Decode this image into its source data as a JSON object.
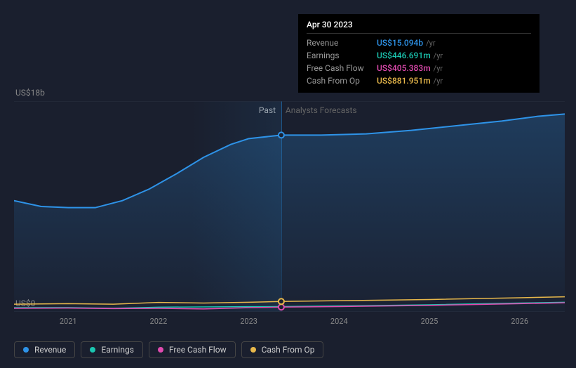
{
  "tooltip": {
    "date": "Apr 30 2023",
    "rows": [
      {
        "label": "Revenue",
        "value": "US$15.094b",
        "unit": "/yr",
        "color": "#2e93e8"
      },
      {
        "label": "Earnings",
        "value": "US$446.691m",
        "unit": "/yr",
        "color": "#1bc7b1"
      },
      {
        "label": "Free Cash Flow",
        "value": "US$405.383m",
        "unit": "/yr",
        "color": "#e14bb0"
      },
      {
        "label": "Cash From Op",
        "value": "US$881.951m",
        "unit": "/yr",
        "color": "#e8b84b"
      }
    ]
  },
  "axes": {
    "yMaxLabel": "US$18b",
    "yMinLabel": "US$0",
    "yMax": 18,
    "yMin": 0,
    "xLabels": [
      "2021",
      "2022",
      "2023",
      "2024",
      "2025",
      "2026"
    ],
    "xMin": 2020.4,
    "xMax": 2026.5
  },
  "sections": {
    "pastLabel": "Past",
    "forecastLabel": "Analysts Forecasts",
    "dividerX": 2023.36
  },
  "series": [
    {
      "name": "Revenue",
      "color": "#2e93e8",
      "fill": true,
      "lineWidth": 2,
      "data": [
        {
          "x": 2020.4,
          "y": 9.5
        },
        {
          "x": 2020.7,
          "y": 9.0
        },
        {
          "x": 2021.0,
          "y": 8.9
        },
        {
          "x": 2021.3,
          "y": 8.9
        },
        {
          "x": 2021.6,
          "y": 9.5
        },
        {
          "x": 2021.9,
          "y": 10.5
        },
        {
          "x": 2022.2,
          "y": 11.8
        },
        {
          "x": 2022.5,
          "y": 13.2
        },
        {
          "x": 2022.8,
          "y": 14.3
        },
        {
          "x": 2023.0,
          "y": 14.8
        },
        {
          "x": 2023.36,
          "y": 15.094
        },
        {
          "x": 2023.8,
          "y": 15.1
        },
        {
          "x": 2024.3,
          "y": 15.2
        },
        {
          "x": 2024.8,
          "y": 15.5
        },
        {
          "x": 2025.3,
          "y": 15.9
        },
        {
          "x": 2025.8,
          "y": 16.3
        },
        {
          "x": 2026.2,
          "y": 16.7
        },
        {
          "x": 2026.5,
          "y": 16.9
        }
      ],
      "marker": {
        "x": 2023.36,
        "y": 15.094
      }
    },
    {
      "name": "Earnings",
      "color": "#1bc7b1",
      "fill": false,
      "lineWidth": 1.5,
      "data": [
        {
          "x": 2020.4,
          "y": 0.35
        },
        {
          "x": 2021.0,
          "y": 0.36
        },
        {
          "x": 2021.5,
          "y": 0.3
        },
        {
          "x": 2022.0,
          "y": 0.4
        },
        {
          "x": 2022.5,
          "y": 0.42
        },
        {
          "x": 2023.0,
          "y": 0.44
        },
        {
          "x": 2023.36,
          "y": 0.447
        },
        {
          "x": 2024.0,
          "y": 0.5
        },
        {
          "x": 2025.0,
          "y": 0.6
        },
        {
          "x": 2026.0,
          "y": 0.75
        },
        {
          "x": 2026.5,
          "y": 0.82
        }
      ]
    },
    {
      "name": "Free Cash Flow",
      "color": "#e14bb0",
      "fill": false,
      "lineWidth": 1.5,
      "data": [
        {
          "x": 2020.4,
          "y": 0.3
        },
        {
          "x": 2021.0,
          "y": 0.32
        },
        {
          "x": 2021.5,
          "y": 0.28
        },
        {
          "x": 2022.0,
          "y": 0.3
        },
        {
          "x": 2022.5,
          "y": 0.25
        },
        {
          "x": 2023.0,
          "y": 0.35
        },
        {
          "x": 2023.36,
          "y": 0.405
        },
        {
          "x": 2024.0,
          "y": 0.45
        },
        {
          "x": 2025.0,
          "y": 0.55
        },
        {
          "x": 2026.0,
          "y": 0.7
        },
        {
          "x": 2026.5,
          "y": 0.77
        }
      ],
      "marker": {
        "x": 2023.36,
        "y": 0.405
      }
    },
    {
      "name": "Cash From Op",
      "color": "#e8b84b",
      "fill": false,
      "lineWidth": 1.5,
      "data": [
        {
          "x": 2020.4,
          "y": 0.65
        },
        {
          "x": 2021.0,
          "y": 0.7
        },
        {
          "x": 2021.5,
          "y": 0.65
        },
        {
          "x": 2022.0,
          "y": 0.8
        },
        {
          "x": 2022.5,
          "y": 0.75
        },
        {
          "x": 2023.0,
          "y": 0.82
        },
        {
          "x": 2023.36,
          "y": 0.882
        },
        {
          "x": 2024.0,
          "y": 0.95
        },
        {
          "x": 2025.0,
          "y": 1.05
        },
        {
          "x": 2026.0,
          "y": 1.2
        },
        {
          "x": 2026.5,
          "y": 1.28
        }
      ],
      "marker": {
        "x": 2023.36,
        "y": 0.882
      }
    }
  ],
  "legend": [
    {
      "label": "Revenue",
      "color": "#2e93e8"
    },
    {
      "label": "Earnings",
      "color": "#1bc7b1"
    },
    {
      "label": "Free Cash Flow",
      "color": "#e14bb0"
    },
    {
      "label": "Cash From Op",
      "color": "#e8b84b"
    }
  ],
  "chart": {
    "background": "#1a1f2e",
    "plotBackground": "#151a27",
    "gridColor": "#2a3040"
  }
}
